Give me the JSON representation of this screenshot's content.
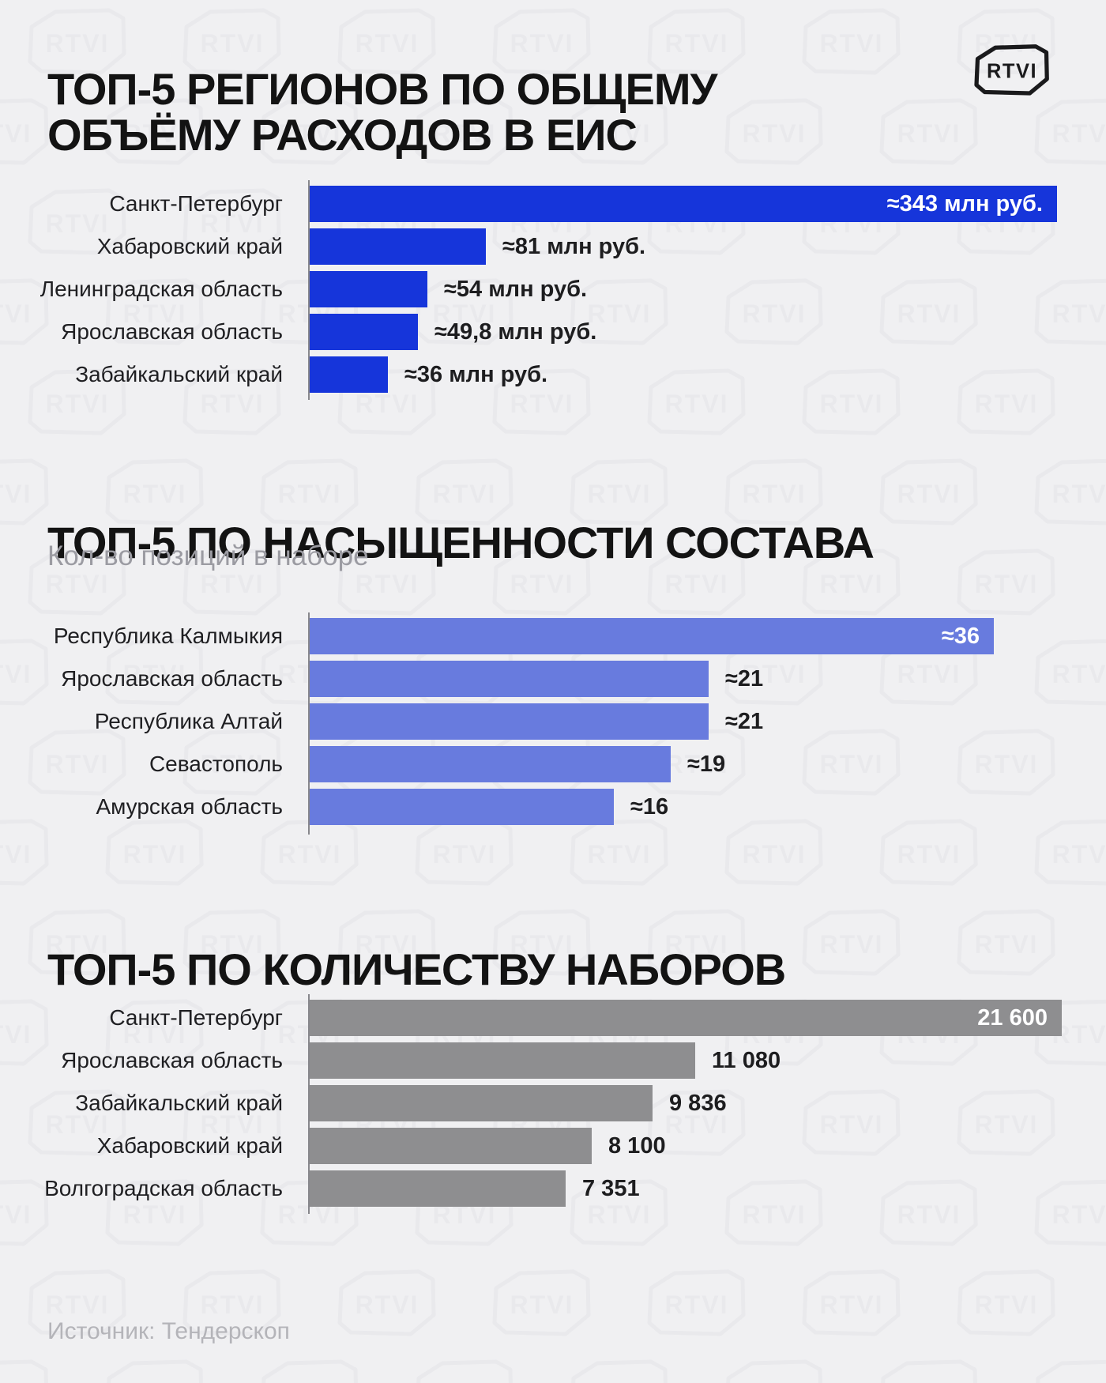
{
  "page": {
    "logo_text": "RTVI",
    "source": "Источник: Тендерскоп"
  },
  "chart_data": [
    {
      "type": "bar",
      "orientation": "horizontal",
      "title": "ТОП-5 РЕГИОНОВ ПО ОБЩЕМУ ОБЪЁМУ РАСХОДОВ В ЕИС",
      "subtitle": "",
      "unit": "млн руб.",
      "categories": [
        "Санкт-Петербург",
        "Хабаровский край",
        "Ленинградская область",
        "Ярославская область",
        "Забайкальский край"
      ],
      "values": [
        343,
        81,
        54,
        49.8,
        36
      ],
      "value_labels": [
        "≈343 млн руб.",
        "≈81 млн руб.",
        "≈54 млн руб.",
        "≈49,8 млн руб.",
        "≈36 млн руб."
      ],
      "bar_color": "#1635da",
      "value_inside_first_bar": true,
      "xlim": [
        0,
        343
      ],
      "grid": false,
      "legend": "none"
    },
    {
      "type": "bar",
      "orientation": "horizontal",
      "title": "ТОП-5 ПО НАСЫЩЕННОСТИ СОСТАВА",
      "subtitle": "Кол-во позиций в наборе",
      "unit": "позиций",
      "categories": [
        "Республика Калмыкия",
        "Ярославская область",
        "Республика Алтай",
        "Севастополь",
        "Амурская область"
      ],
      "values": [
        36,
        21,
        21,
        19,
        16
      ],
      "value_labels": [
        "≈36",
        "≈21",
        "≈21",
        "≈19",
        "≈16"
      ],
      "bar_color": "#687bde",
      "value_inside_first_bar": true,
      "xlim": [
        0,
        36
      ],
      "grid": false,
      "legend": "none"
    },
    {
      "type": "bar",
      "orientation": "horizontal",
      "title": "ТОП-5 ПО КОЛИЧЕСТВУ НАБОРОВ",
      "subtitle": "",
      "unit": "наборов",
      "categories": [
        "Санкт-Петербург",
        "Ярославская область",
        "Забайкальский край",
        "Хабаровский край",
        "Волгоградская область"
      ],
      "values": [
        21600,
        11080,
        9836,
        8100,
        7351
      ],
      "value_labels": [
        "21 600",
        "11 080",
        "9 836",
        "8 100",
        "7 351"
      ],
      "bar_color": "#8e8e90",
      "value_inside_first_bar": true,
      "xlim": [
        0,
        21600
      ],
      "grid": false,
      "legend": "none"
    }
  ]
}
